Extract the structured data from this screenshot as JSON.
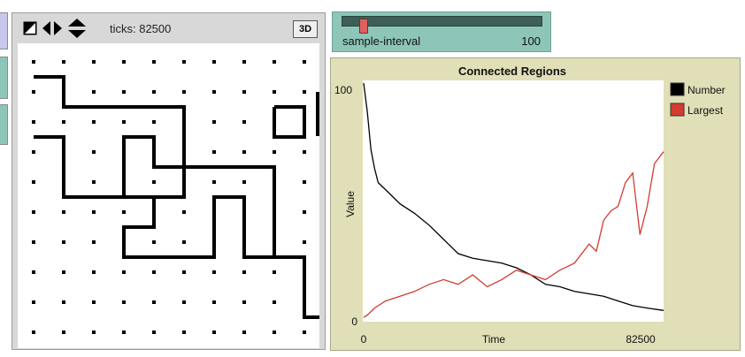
{
  "view": {
    "ticks_label": "ticks: 82500",
    "btn_3d": "3D",
    "toolbar_icons": [
      "edit-shape-icon",
      "left-right-arrows-icon",
      "up-down-arrows-icon"
    ]
  },
  "slider": {
    "label": "sample-interval",
    "value_text": "100",
    "value": 100,
    "fraction": 0.05
  },
  "world": {
    "grid_cols": 10,
    "grid_rows": 10,
    "line_color": "#000000",
    "dot_color": "#000000"
  },
  "chart_data": {
    "type": "line",
    "title": "Connected Regions",
    "xlabel": "Time",
    "ylabel": "Value",
    "x_tick_labels": [
      "0",
      "82500"
    ],
    "y_tick_labels": [
      "0",
      "100"
    ],
    "xlim": [
      0,
      82500
    ],
    "ylim": [
      0,
      100
    ],
    "legend_position": "top-right",
    "series": [
      {
        "name": "Number",
        "color": "#000000",
        "x": [
          0,
          1000,
          2000,
          3000,
          4000,
          6000,
          8000,
          10000,
          14000,
          18000,
          22000,
          26000,
          30000,
          34000,
          38000,
          42000,
          46000,
          50000,
          54000,
          58000,
          62000,
          66000,
          70000,
          74000,
          78000,
          82500
        ],
        "y": [
          100,
          88,
          72,
          64,
          58,
          55,
          52,
          49,
          45,
          40,
          34,
          28,
          26,
          25,
          24,
          22,
          19,
          15,
          14,
          12,
          11,
          10,
          8,
          6,
          5,
          4
        ]
      },
      {
        "name": "Largest",
        "color": "#d23c32",
        "x": [
          0,
          1000,
          3000,
          6000,
          10000,
          14000,
          18000,
          22000,
          26000,
          30000,
          34000,
          38000,
          42000,
          46000,
          50000,
          54000,
          58000,
          62000,
          64000,
          66000,
          68000,
          70000,
          72000,
          74000,
          76000,
          78000,
          80000,
          82500
        ],
        "y": [
          1,
          2,
          5,
          8,
          10,
          12,
          15,
          17,
          15,
          19,
          14,
          17,
          21,
          19,
          17,
          21,
          24,
          32,
          29,
          42,
          46,
          48,
          58,
          62,
          36,
          48,
          66,
          71
        ]
      }
    ]
  }
}
